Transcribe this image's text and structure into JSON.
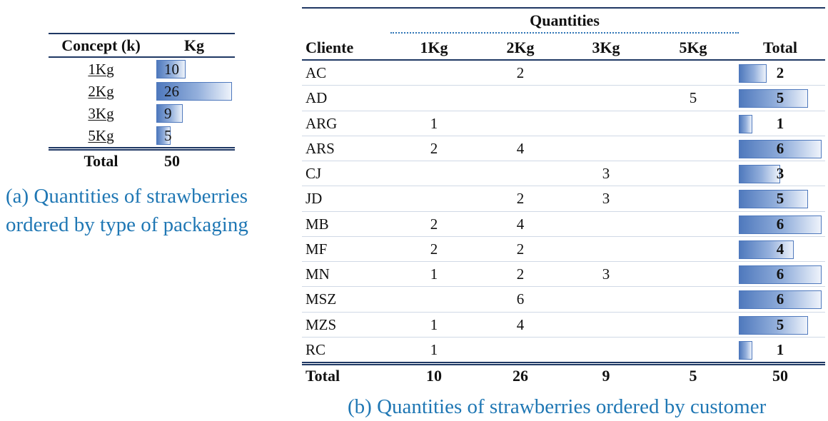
{
  "table_a": {
    "headers": {
      "concept": "Concept (k)",
      "kg": "Kg"
    },
    "max_value": 26,
    "rows": [
      {
        "concept": "1Kg",
        "kg": 10
      },
      {
        "concept": "2Kg",
        "kg": 26
      },
      {
        "concept": "3Kg",
        "kg": 9
      },
      {
        "concept": "5Kg",
        "kg": 5
      }
    ],
    "total_label": "Total",
    "total_value": 50,
    "bar_color": "#4f79bd"
  },
  "caption_a": {
    "line1": "(a) Quantities of strawberries",
    "line2": "ordered by type of packaging"
  },
  "table_b": {
    "group_header": "Quantities",
    "headers": {
      "client": "Cliente",
      "k1": "1Kg",
      "k2": "2Kg",
      "k3": "3Kg",
      "k5": "5Kg",
      "total": "Total"
    },
    "max_total": 6,
    "rows": [
      {
        "client": "AC",
        "k1": "",
        "k2": "2",
        "k3": "",
        "k5": "",
        "total": 2
      },
      {
        "client": "AD",
        "k1": "",
        "k2": "",
        "k3": "",
        "k5": "5",
        "total": 5
      },
      {
        "client": "ARG",
        "k1": "1",
        "k2": "",
        "k3": "",
        "k5": "",
        "total": 1
      },
      {
        "client": "ARS",
        "k1": "2",
        "k2": "4",
        "k3": "",
        "k5": "",
        "total": 6
      },
      {
        "client": "CJ",
        "k1": "",
        "k2": "",
        "k3": "3",
        "k5": "",
        "total": 3
      },
      {
        "client": "JD",
        "k1": "",
        "k2": "2",
        "k3": "3",
        "k5": "",
        "total": 5
      },
      {
        "client": "MB",
        "k1": "2",
        "k2": "4",
        "k3": "",
        "k5": "",
        "total": 6
      },
      {
        "client": "MF",
        "k1": "2",
        "k2": "2",
        "k3": "",
        "k5": "",
        "total": 4
      },
      {
        "client": "MN",
        "k1": "1",
        "k2": "2",
        "k3": "3",
        "k5": "",
        "total": 6
      },
      {
        "client": "MSZ",
        "k1": "",
        "k2": "6",
        "k3": "",
        "k5": "",
        "total": 6
      },
      {
        "client": "MZS",
        "k1": "1",
        "k2": "4",
        "k3": "",
        "k5": "",
        "total": 5
      },
      {
        "client": "RC",
        "k1": "1",
        "k2": "",
        "k3": "",
        "k5": "",
        "total": 1
      }
    ],
    "totals": {
      "label": "Total",
      "k1": "10",
      "k2": "26",
      "k3": "9",
      "k5": "5",
      "total": "50"
    },
    "bar_color": "#4f79bd"
  },
  "caption_b": {
    "text": "(b) Quantities of strawberries ordered by customer"
  },
  "colors": {
    "caption": "#1f77b4",
    "rule": "#1f3864",
    "dotted_rule": "#2e75b6"
  }
}
